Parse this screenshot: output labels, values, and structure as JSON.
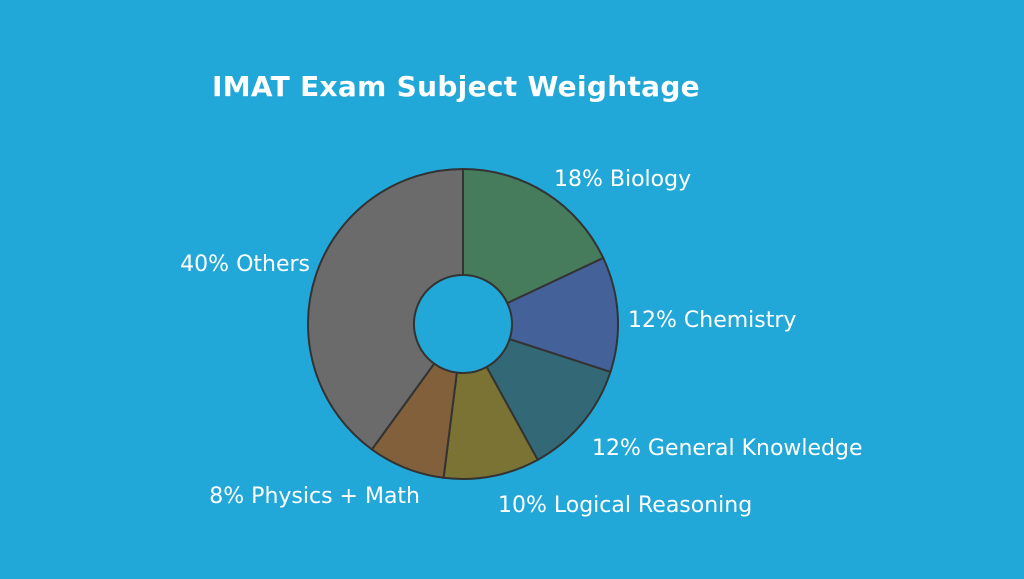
{
  "chart_data": {
    "type": "pie",
    "variant": "donut",
    "title": "IMAT Exam Subject Weightage",
    "start": "top, clockwise",
    "slices": [
      {
        "label": "Biology",
        "value": 18,
        "text": "18% Biology",
        "color": "#467b5c"
      },
      {
        "label": "Chemistry",
        "value": 12,
        "text": "12% Chemistry",
        "color": "#44619a"
      },
      {
        "label": "General Knowledge",
        "value": 12,
        "text": "12% General Knowledge",
        "color": "#336876"
      },
      {
        "label": "Logical Reasoning",
        "value": 10,
        "text": "10% Logical Reasoning",
        "color": "#7a7334"
      },
      {
        "label": "Physics + Math",
        "value": 8,
        "text": "8% Physics + Math",
        "color": "#81603b"
      },
      {
        "label": "Others",
        "value": 40,
        "text": "40% Others",
        "color": "#6b6b6b"
      }
    ],
    "background": "#22a8d8",
    "stroke": "#333333",
    "legend": "none"
  }
}
